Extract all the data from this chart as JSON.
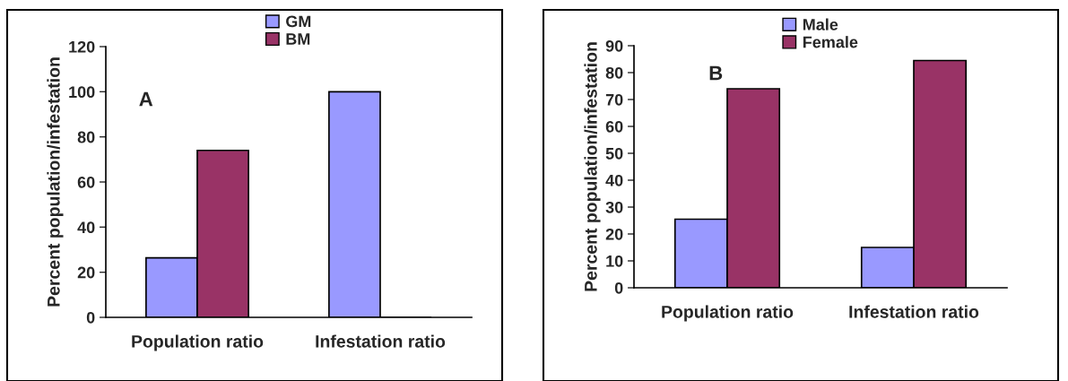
{
  "chart_data": [
    {
      "type": "bar",
      "ylabel": "Percent population/infestation",
      "annotations": [
        "A"
      ],
      "categories": [
        "Population ratio",
        "Infestation ratio"
      ],
      "series": [
        {
          "name": "GM",
          "color": "#9999ff",
          "values": [
            26.4,
            100
          ]
        },
        {
          "name": "BM",
          "color": "#993366",
          "values": [
            74,
            0
          ]
        }
      ],
      "ylim": [
        0,
        120
      ],
      "yticks": [
        0,
        20,
        40,
        60,
        80,
        100,
        120
      ],
      "grid": false,
      "legend": "top"
    },
    {
      "type": "bar",
      "ylabel": "Percent population/infestation",
      "annotations": [
        "B"
      ],
      "categories": [
        "Population ratio",
        "Infestation ratio"
      ],
      "series": [
        {
          "name": "Male",
          "color": "#9999ff",
          "values": [
            25.5,
            15
          ]
        },
        {
          "name": "Female",
          "color": "#993366",
          "values": [
            74,
            84.5
          ]
        }
      ],
      "ylim": [
        0,
        90
      ],
      "yticks": [
        0,
        10,
        20,
        30,
        40,
        50,
        60,
        70,
        80,
        90
      ],
      "grid": false,
      "legend": "top"
    }
  ]
}
